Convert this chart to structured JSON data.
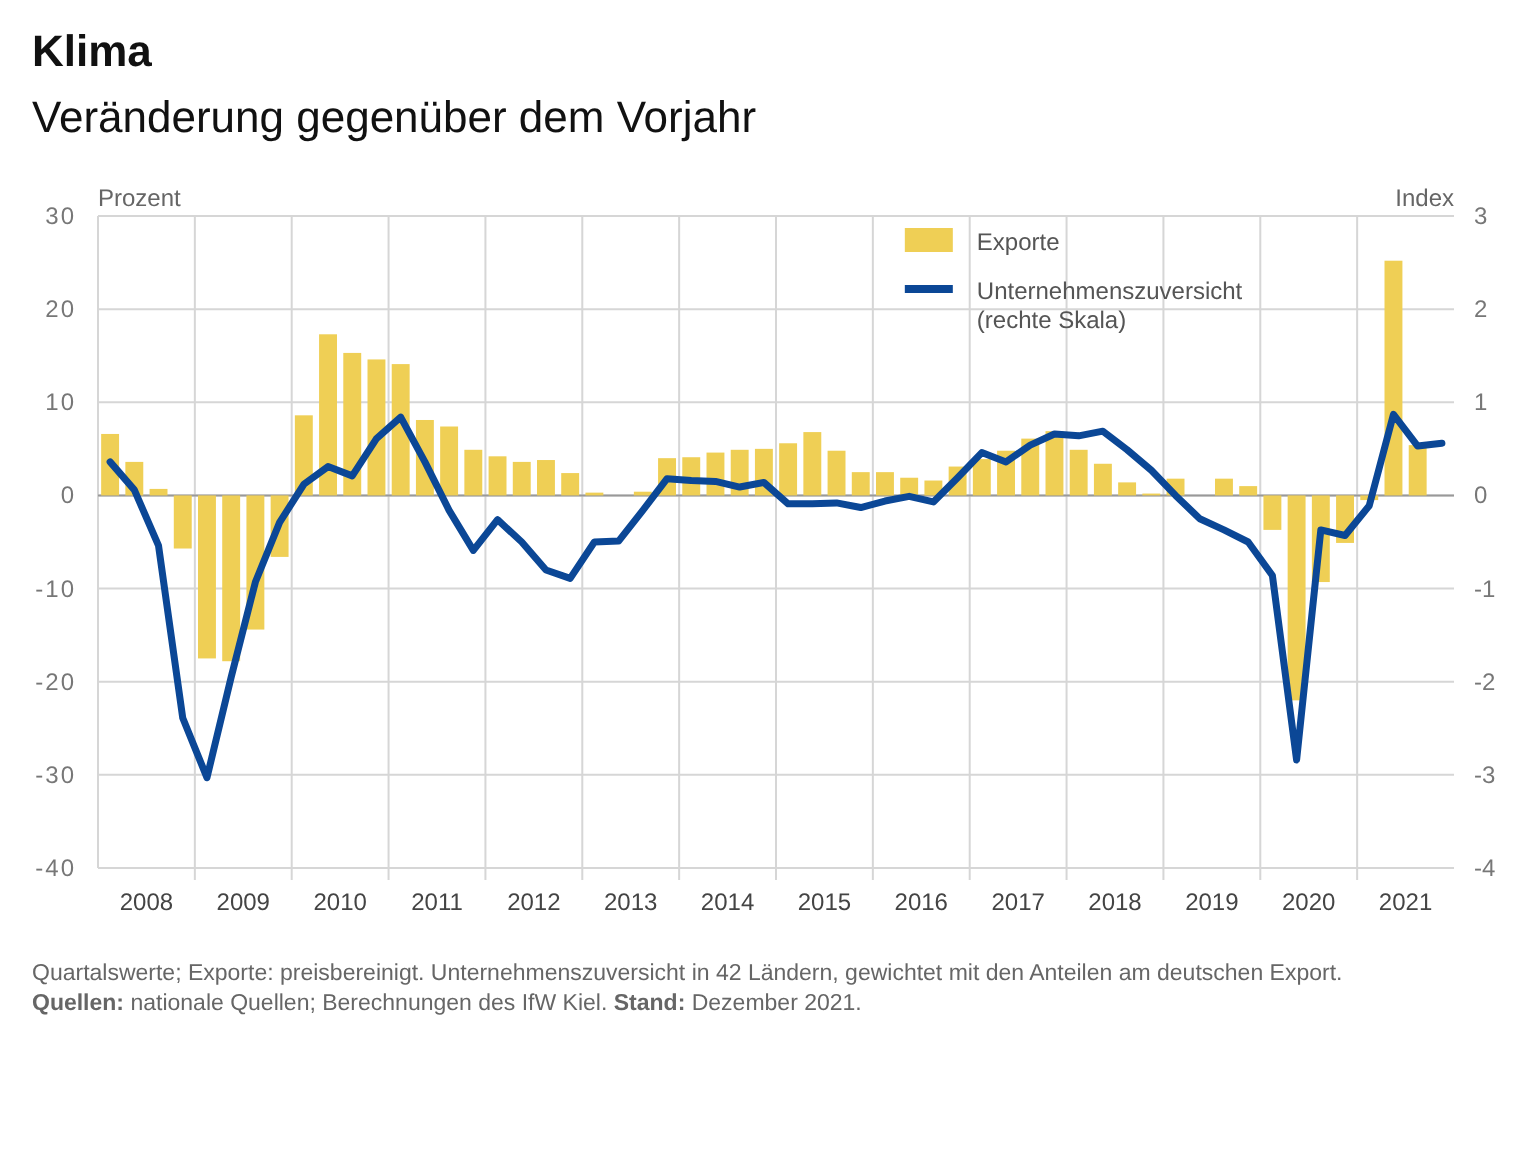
{
  "chart_data": {
    "type": "bar",
    "title": "Klima",
    "subtitle": "Veränderung gegenüber dem Vorjahr",
    "ylabel": "Prozent",
    "y2label": "Index",
    "x": [
      2008.125,
      2008.375,
      2008.625,
      2008.875,
      2009.125,
      2009.375,
      2009.625,
      2009.875,
      2010.125,
      2010.375,
      2010.625,
      2010.875,
      2011.125,
      2011.375,
      2011.625,
      2011.875,
      2012.125,
      2012.375,
      2012.625,
      2012.875,
      2013.125,
      2013.375,
      2013.625,
      2013.875,
      2014.125,
      2014.375,
      2014.625,
      2014.875,
      2015.125,
      2015.375,
      2015.625,
      2015.875,
      2016.125,
      2016.375,
      2016.625,
      2016.875,
      2017.125,
      2017.375,
      2017.625,
      2017.875,
      2018.125,
      2018.375,
      2018.625,
      2018.875,
      2019.125,
      2019.375,
      2019.625,
      2019.875,
      2020.125,
      2020.375,
      2020.625,
      2020.875,
      2021.125,
      2021.375,
      2021.625,
      2021.875
    ],
    "series": [
      {
        "name": "Exporte",
        "color": "#efcf55",
        "values": [
          6.6,
          3.6,
          0.7,
          -5.7,
          -17.5,
          -17.8,
          -14.4,
          -6.6,
          8.6,
          17.3,
          15.3,
          14.6,
          14.1,
          8.1,
          7.4,
          4.9,
          4.2,
          3.6,
          3.8,
          2.4,
          0.3,
          0,
          0.4,
          4.0,
          4.1,
          4.6,
          4.9,
          5.0,
          5.6,
          6.8,
          4.8,
          2.5,
          2.5,
          1.9,
          1.6,
          3.1,
          3.9,
          4.8,
          6.1,
          6.9,
          4.9,
          3.4,
          1.4,
          0.2,
          1.8,
          0,
          1.8,
          1.0,
          -3.7,
          -22.0,
          -9.3,
          -5.1,
          -0.5,
          25.2,
          5.4,
          null
        ]
      },
      {
        "name": "Unternehmenszuversicht (rechte Skala)",
        "type": "line",
        "axis": "y2",
        "color": "#0b4796",
        "values": [
          0.36,
          0.06,
          -0.54,
          -2.39,
          -3.03,
          -1.95,
          -0.93,
          -0.29,
          0.12,
          0.31,
          0.21,
          0.61,
          0.84,
          0.36,
          -0.16,
          -0.59,
          -0.26,
          -0.5,
          -0.8,
          -0.89,
          -0.5,
          -0.49,
          -0.16,
          0.18,
          0.16,
          0.15,
          0.09,
          0.14,
          -0.09,
          -0.09,
          -0.08,
          -0.13,
          -0.06,
          -0.01,
          -0.07,
          0.19,
          0.46,
          0.36,
          0.54,
          0.66,
          0.64,
          0.69,
          0.49,
          0.27,
          0.0,
          -0.25,
          -0.37,
          -0.5,
          -0.86,
          -2.84,
          -0.37,
          -0.43,
          -0.11,
          0.87,
          0.53,
          0.56
        ]
      }
    ],
    "xlim": [
      2008,
      2022
    ],
    "xticks": [
      {
        "value": 2009,
        "label": null
      },
      {
        "value": 2010,
        "label": null
      },
      {
        "value": 2011,
        "label": null
      },
      {
        "value": 2012,
        "label": null
      },
      {
        "value": 2013,
        "label": null
      },
      {
        "value": 2014,
        "label": null
      },
      {
        "value": 2015,
        "label": null
      },
      {
        "value": 2016,
        "label": null
      },
      {
        "value": 2017,
        "label": null
      },
      {
        "value": 2018,
        "label": null
      },
      {
        "value": 2019,
        "label": null
      },
      {
        "value": 2020,
        "label": null
      },
      {
        "value": 2021,
        "label": null
      },
      {
        "value": 2008.5,
        "label": "2008"
      },
      {
        "value": 2009.5,
        "label": "2009"
      },
      {
        "value": 2010.5,
        "label": "2010"
      },
      {
        "value": 2011.5,
        "label": "2011"
      },
      {
        "value": 2012.5,
        "label": "2012"
      },
      {
        "value": 2013.5,
        "label": "2013"
      },
      {
        "value": 2014.5,
        "label": "2014"
      },
      {
        "value": 2015.5,
        "label": "2015"
      },
      {
        "value": 2016.5,
        "label": "2016"
      },
      {
        "value": 2017.5,
        "label": "2017"
      },
      {
        "value": 2018.5,
        "label": "2018"
      },
      {
        "value": 2019.5,
        "label": "2019"
      },
      {
        "value": 2020.5,
        "label": "2020"
      },
      {
        "value": 2021.5,
        "label": "2021"
      }
    ],
    "ylim": [
      -40,
      30
    ],
    "yticks": [
      -40,
      -30,
      -20,
      -10,
      0,
      10,
      20,
      30
    ],
    "y2lim": [
      -4,
      3
    ],
    "y2ticks": [
      -4,
      -3,
      -2,
      -1,
      0,
      1,
      2,
      3
    ],
    "grid": true,
    "legend": "top right",
    "annotations": [
      "Quartalswerte; Exporte: preisbereinigt. Unternehmenszuversicht in 42 Ländern, gewichtet mit den Anteilen am deutschen Export.",
      "Quellen: nationale Quellen; Berechnungen des IfW Kiel. Stand: Dezember 2021."
    ]
  }
}
